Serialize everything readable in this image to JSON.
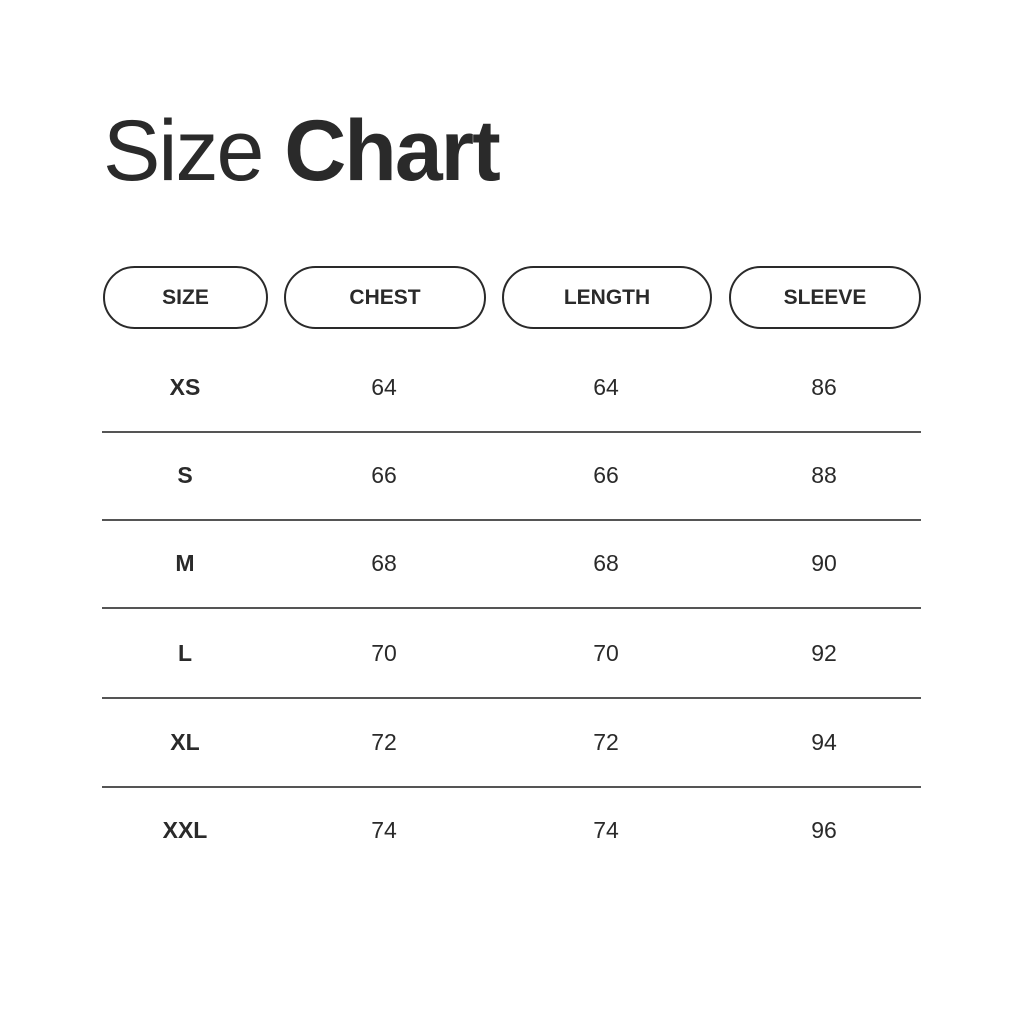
{
  "title": {
    "light": "Size",
    "bold": "Chart"
  },
  "headers": [
    "SIZE",
    "CHEST",
    "LENGTH",
    "SLEEVE"
  ],
  "rows": [
    [
      "XS",
      "64",
      "64",
      "86"
    ],
    [
      "S",
      "66",
      "66",
      "88"
    ],
    [
      "M",
      "68",
      "68",
      "90"
    ],
    [
      "L",
      "70",
      "70",
      "92"
    ],
    [
      "XL",
      "72",
      "72",
      "94"
    ],
    [
      "XXL",
      "74",
      "74",
      "96"
    ]
  ],
  "colors": {
    "text": "#2a2a2a",
    "rule": "#555555",
    "background": "#ffffff"
  }
}
